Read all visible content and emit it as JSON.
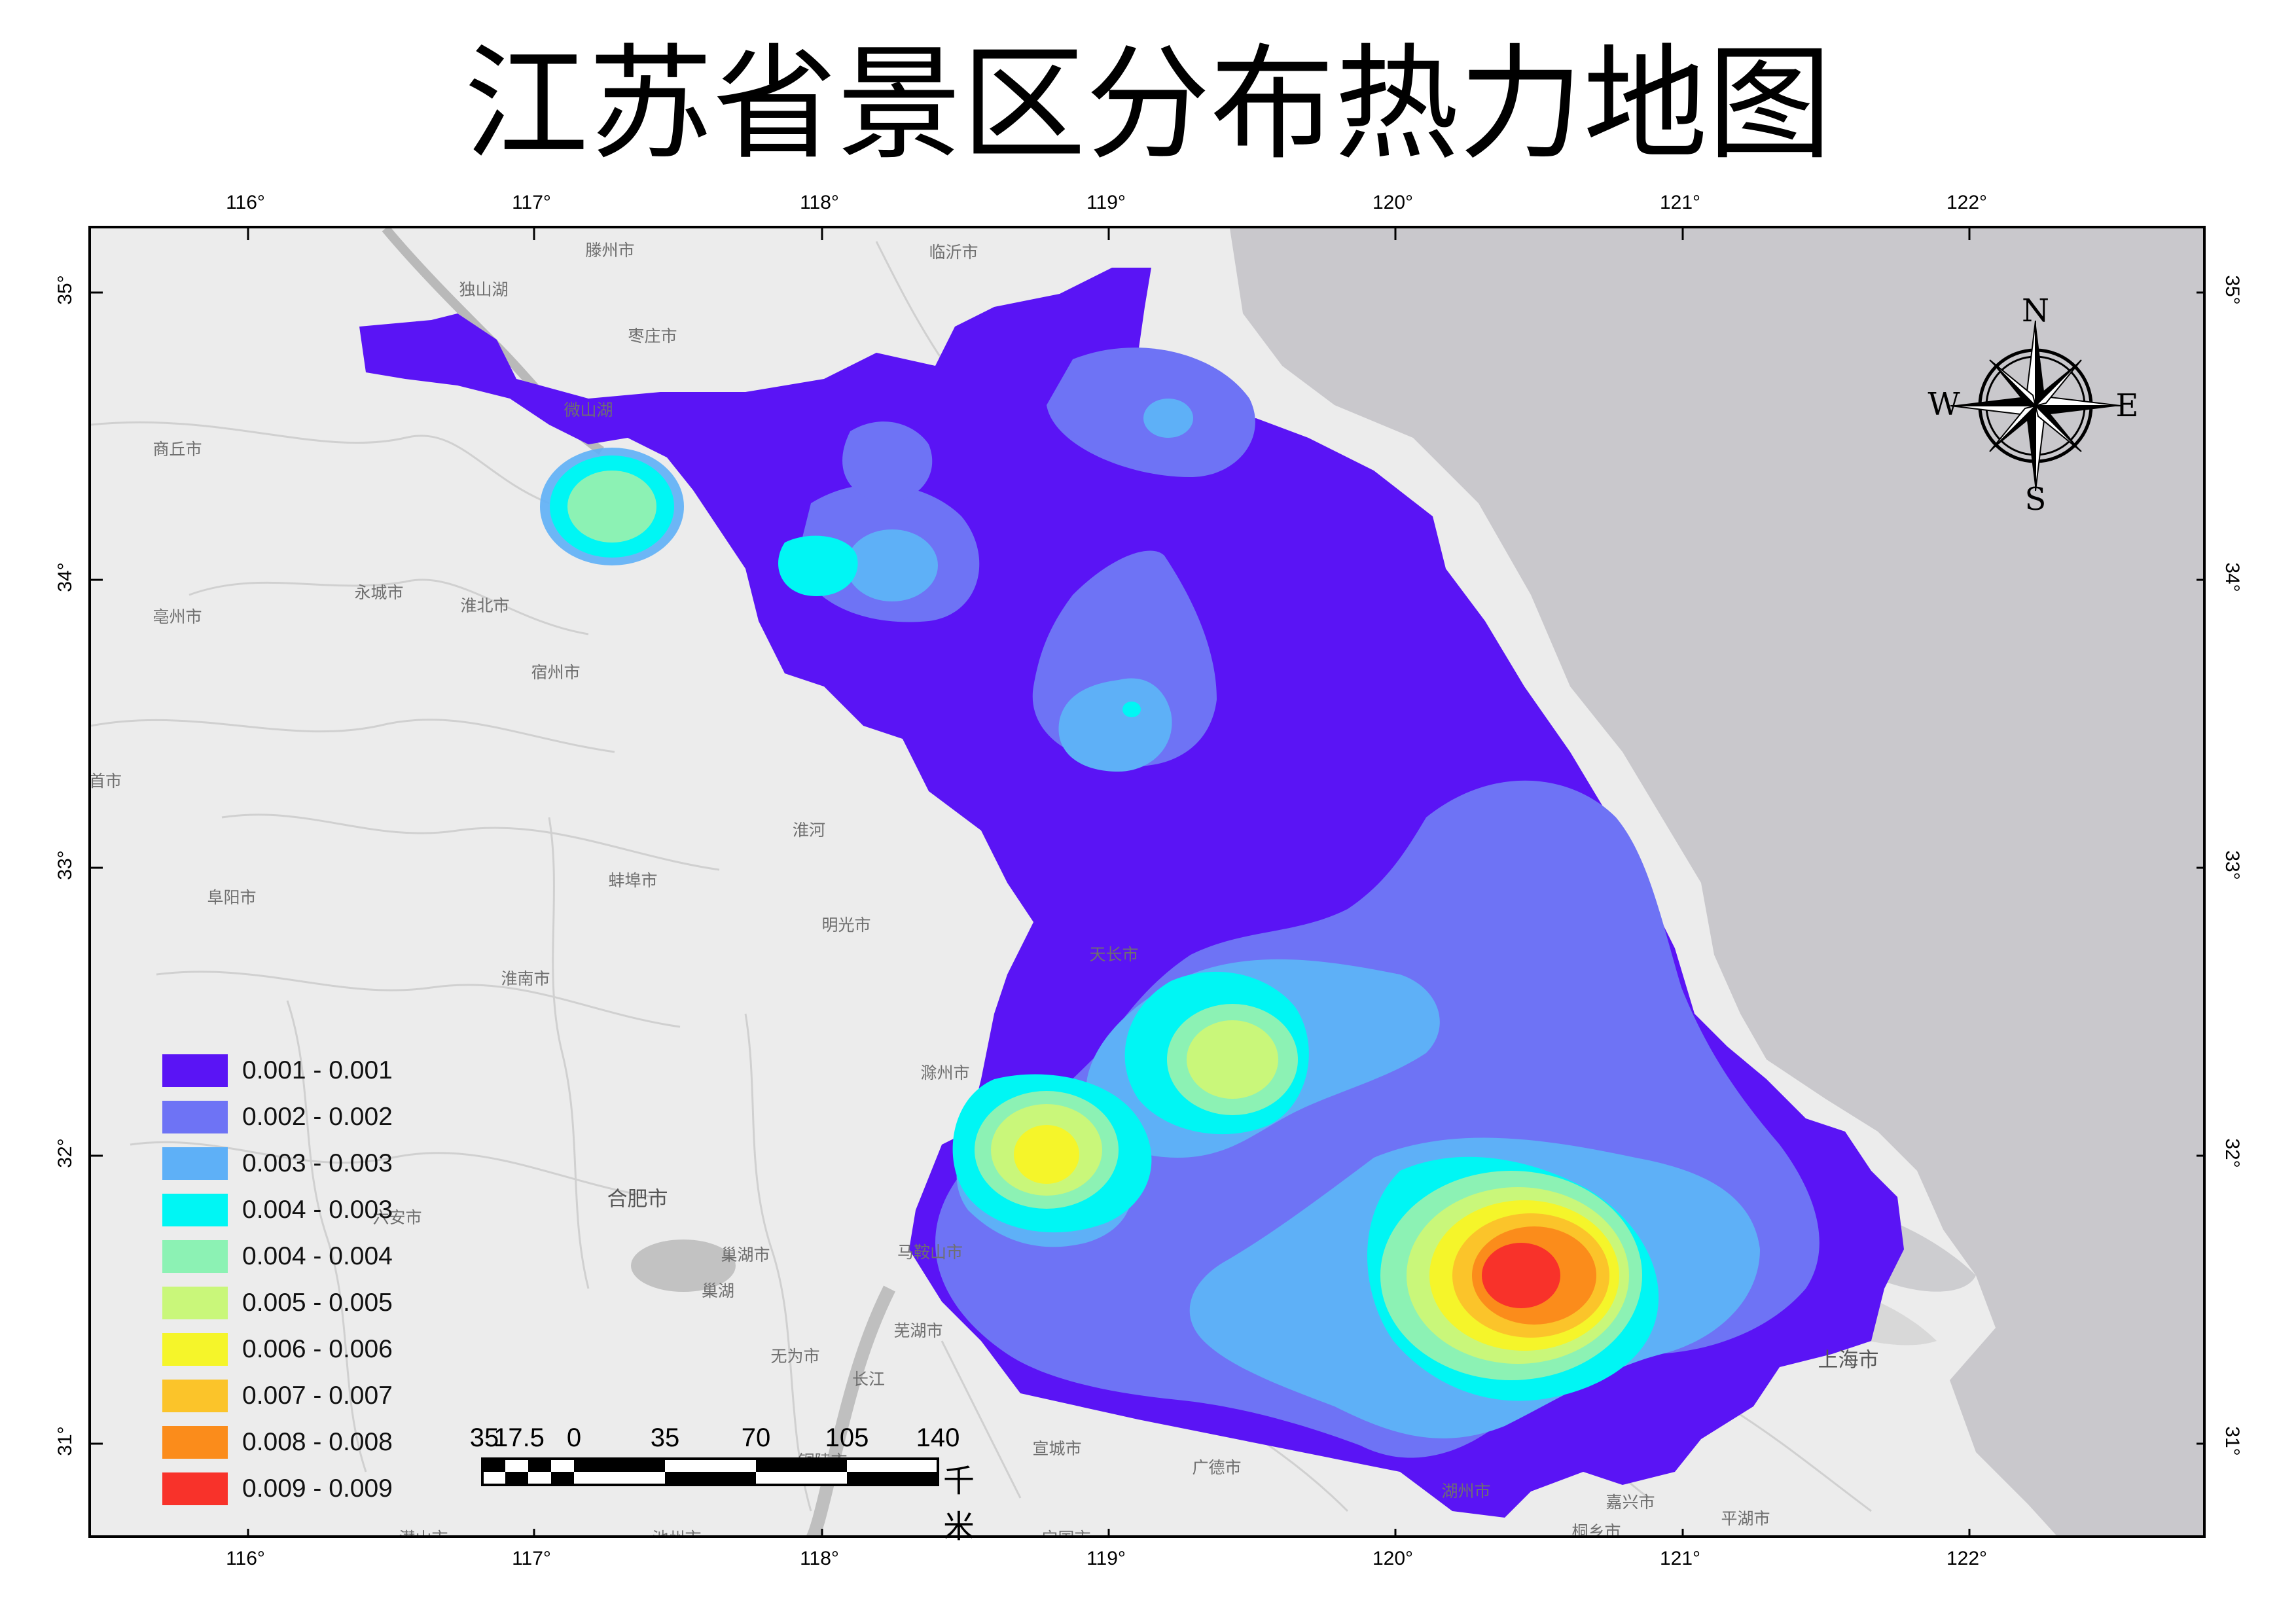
{
  "title": "江苏省景区分布热力地图",
  "graticule": {
    "longitudes": [
      "116°",
      "117°",
      "118°",
      "119°",
      "120°",
      "121°",
      "122°"
    ],
    "latitudes": [
      "35°",
      "34°",
      "33°",
      "32°",
      "31°"
    ]
  },
  "legend": {
    "items": [
      {
        "label": "0.001 - 0.001",
        "color": "#5a14f5"
      },
      {
        "label": "0.002 - 0.002",
        "color": "#6e73f5"
      },
      {
        "label": "0.003 - 0.003",
        "color": "#5eb0f7"
      },
      {
        "label": "0.004 - 0.003",
        "color": "#00f6f4"
      },
      {
        "label": "0.004 - 0.004",
        "color": "#8cf2b4"
      },
      {
        "label": "0.005 - 0.005",
        "color": "#c9f77a"
      },
      {
        "label": "0.006 - 0.006",
        "color": "#f5f52a"
      },
      {
        "label": "0.007 - 0.007",
        "color": "#fbc42a"
      },
      {
        "label": "0.008 - 0.008",
        "color": "#fb8c1b"
      },
      {
        "label": "0.009 - 0.009",
        "color": "#f8322a"
      }
    ]
  },
  "scale_bar": {
    "ticks": [
      "35",
      "17.5",
      "0",
      "35",
      "70",
      "105",
      "140"
    ],
    "unit": "千米"
  },
  "compass": {
    "north": "N",
    "south": "S",
    "east": "E",
    "west": "W"
  },
  "cities": [
    {
      "name": "滕州市"
    },
    {
      "name": "临沂市"
    },
    {
      "name": "独山湖"
    },
    {
      "name": "枣庄市"
    },
    {
      "name": "微山湖"
    },
    {
      "name": "商丘市"
    },
    {
      "name": "永城市"
    },
    {
      "name": "淮北市"
    },
    {
      "name": "亳州市"
    },
    {
      "name": "宿州市"
    },
    {
      "name": "阜阳市"
    },
    {
      "name": "蚌埠市"
    },
    {
      "name": "淮河"
    },
    {
      "name": "明光市"
    },
    {
      "name": "淮南市"
    },
    {
      "name": "天长市"
    },
    {
      "name": "滁州市"
    },
    {
      "name": "合肥市"
    },
    {
      "name": "六安市"
    },
    {
      "name": "巢湖市"
    },
    {
      "name": "马鞍山市"
    },
    {
      "name": "巢湖"
    },
    {
      "name": "芜湖市"
    },
    {
      "name": "无为市"
    },
    {
      "name": "长江"
    },
    {
      "name": "铜陵市"
    },
    {
      "name": "宣城市"
    },
    {
      "name": "广德市"
    },
    {
      "name": "湖州市"
    },
    {
      "name": "嘉兴市"
    },
    {
      "name": "平湖市"
    },
    {
      "name": "上海市"
    },
    {
      "name": "宁国市"
    },
    {
      "name": "潜山市"
    },
    {
      "name": "池州市"
    },
    {
      "name": "桐乡市"
    },
    {
      "name": "首市"
    }
  ]
}
